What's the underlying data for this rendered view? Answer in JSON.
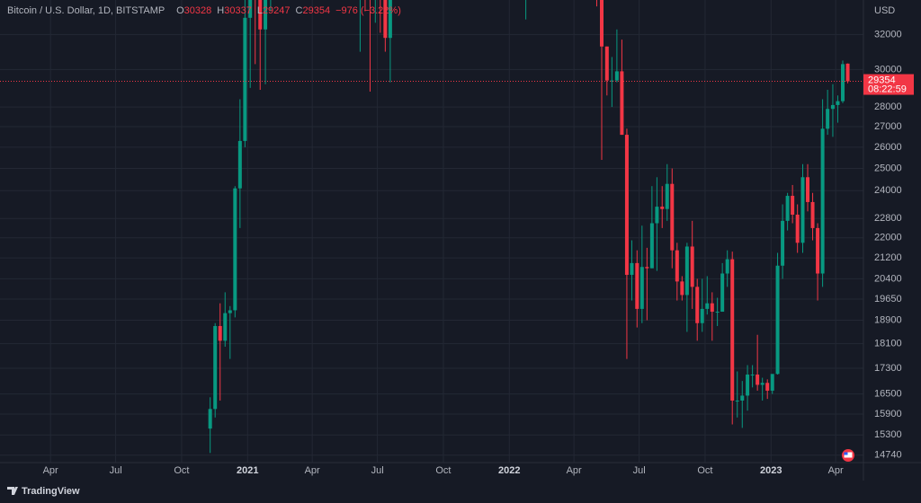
{
  "chart_data": {
    "type": "candlestick",
    "title": "Bitcoin / U.S. Dollar, 1D, BITSTAMP",
    "header_labels": [
      "O",
      "H",
      "L",
      "C"
    ],
    "change_label": "−976 (−3.22%)",
    "countdown": "08:22:59",
    "y_axis_label": "USD",
    "brand": "TradingView",
    "log_scale": true,
    "grid": true,
    "up_color": "#089981",
    "down_color": "#f23645",
    "xlim": [
      2020.054,
      2023.353
    ],
    "ylim": [
      14540,
      34100
    ],
    "xticks": [
      {
        "value": 2020.247,
        "label": "Apr"
      },
      {
        "value": 2020.496,
        "label": "Jul"
      },
      {
        "value": 2020.748,
        "label": "Oct"
      },
      {
        "value": 2021.0,
        "label": "2021"
      },
      {
        "value": 2021.247,
        "label": "Apr"
      },
      {
        "value": 2021.496,
        "label": "Jul"
      },
      {
        "value": 2021.748,
        "label": "Oct"
      },
      {
        "value": 2022.0,
        "label": "2022"
      },
      {
        "value": 2022.247,
        "label": "Apr"
      },
      {
        "value": 2022.496,
        "label": "Jul"
      },
      {
        "value": 2022.748,
        "label": "Oct"
      },
      {
        "value": 2023.0,
        "label": "2023"
      },
      {
        "value": 2023.247,
        "label": "Apr"
      }
    ],
    "yticks": [
      14740,
      15300,
      15900,
      16500,
      17300,
      18100,
      18900,
      19650,
      20400,
      21200,
      22000,
      22800,
      24000,
      25000,
      26000,
      27000,
      28000,
      30000,
      32000
    ],
    "x": [
      2020.857,
      2020.876,
      2020.895,
      2020.914,
      2020.933,
      2020.952,
      2020.971,
      2020.99,
      2021.01,
      2021.029,
      2021.048,
      2021.068,
      2021.088,
      2021.43,
      2021.449,
      2021.468,
      2021.488,
      2021.507,
      2021.526,
      2021.545,
      2021.564,
      2022.063,
      2022.334,
      2022.353,
      2022.373,
      2022.392,
      2022.411,
      2022.43,
      2022.449,
      2022.468,
      2022.488,
      2022.507,
      2022.526,
      2022.545,
      2022.564,
      2022.584,
      2022.603,
      2022.622,
      2022.641,
      2022.66,
      2022.679,
      2022.699,
      2022.718,
      2022.737,
      2022.756,
      2022.775,
      2022.795,
      2022.814,
      2022.833,
      2022.852,
      2022.871,
      2022.89,
      2022.91,
      2022.929,
      2022.948,
      2022.967,
      2022.986,
      2023.005,
      2023.025,
      2023.044,
      2023.063,
      2023.082,
      2023.101,
      2023.121,
      2023.14,
      2023.159,
      2023.178,
      2023.197,
      2023.216,
      2023.236,
      2023.255,
      2023.274,
      2023.293
    ],
    "open": [
      15480,
      16050,
      18700,
      18200,
      19150,
      19250,
      24100,
      26300,
      33000,
      38000,
      36000,
      32300,
      34300,
      35800,
      39000,
      35500,
      34700,
      35300,
      34200,
      31800,
      35300,
      36300,
      38500,
      34300,
      31300,
      29400,
      29400,
      29900,
      26600,
      20550,
      21000,
      19300,
      20850,
      20800,
      22600,
      23300,
      23200,
      24300,
      21500,
      20300,
      19800,
      21650,
      20100,
      18800,
      19300,
      19500,
      19200,
      19200,
      20600,
      21150,
      16300,
      16300,
      16450,
      17100,
      17100,
      16780,
      16840,
      16600,
      17120,
      20900,
      22700,
      23770,
      22960,
      21800,
      24600,
      23500,
      22400,
      20600,
      26900,
      27900,
      28100,
      28300,
      30328
    ],
    "high": [
      16400,
      18800,
      19500,
      19900,
      19400,
      24200,
      28400,
      34800,
      41900,
      40000,
      37800,
      38500,
      40900,
      41300,
      41000,
      35700,
      36600,
      35400,
      34700,
      35400,
      42400,
      38900,
      40000,
      34300,
      31300,
      30700,
      32300,
      31700,
      26900,
      21900,
      21500,
      22500,
      21600,
      24200,
      24600,
      24200,
      25200,
      25000,
      21800,
      20500,
      21800,
      22700,
      20400,
      20400,
      20500,
      19900,
      19700,
      21000,
      21500,
      21450,
      17200,
      16900,
      17400,
      17400,
      18400,
      17000,
      16950,
      17000,
      21400,
      23400,
      23900,
      24250,
      23400,
      25200,
      25200,
      23900,
      22600,
      28400,
      28900,
      29200,
      28600,
      30500,
      30337
    ],
    "low": [
      14800,
      15800,
      16300,
      18000,
      17600,
      19000,
      22400,
      26000,
      29000,
      30300,
      28900,
      29200,
      33400,
      31000,
      33400,
      28800,
      32700,
      32100,
      31000,
      29300,
      35200,
      32900,
      33700,
      25400,
      28600,
      28000,
      29300,
      26600,
      17600,
      19600,
      18650,
      18800,
      18900,
      20800,
      20700,
      22400,
      22700,
      20800,
      19600,
      19600,
      18500,
      19300,
      18200,
      18500,
      19100,
      18200,
      18700,
      19200,
      20100,
      15600,
      15800,
      15500,
      16000,
      16700,
      16600,
      16300,
      16350,
      16500,
      17100,
      20400,
      22300,
      22600,
      21400,
      21400,
      23100,
      21900,
      19600,
      20100,
      26600,
      26500,
      27200,
      28200,
      29247
    ],
    "close": [
      16050,
      18700,
      18200,
      19150,
      19250,
      24100,
      26300,
      33000,
      38000,
      36000,
      32300,
      34300,
      39200,
      39000,
      35500,
      34700,
      35300,
      34200,
      31800,
      35300,
      41500,
      37900,
      34300,
      31300,
      29400,
      29400,
      29900,
      26600,
      20550,
      21000,
      19300,
      20850,
      20800,
      22600,
      23300,
      23200,
      24300,
      21500,
      20300,
      19800,
      21650,
      20100,
      18800,
      19300,
      19500,
      19200,
      19200,
      20600,
      21150,
      16300,
      16300,
      16450,
      17100,
      17100,
      16780,
      16840,
      16600,
      17120,
      20900,
      22700,
      23770,
      22960,
      21800,
      24600,
      23500,
      22400,
      20600,
      26900,
      27900,
      28100,
      28300,
      30300,
      29354
    ]
  }
}
